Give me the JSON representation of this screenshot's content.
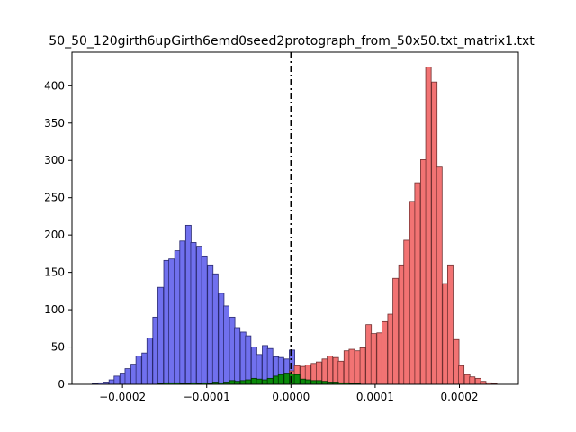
{
  "chart_data": {
    "type": "bar",
    "title": "50_50_120girth6upGirth6emd0seed2protograph_from_50x50.txt_matrix1.txt",
    "xlabel": "",
    "ylabel": "",
    "xlim": [
      -0.00026,
      0.00027
    ],
    "ylim": [
      0,
      445
    ],
    "x_ticks": [
      -0.0002,
      -0.0001,
      0.0,
      0.0001,
      0.0002
    ],
    "x_tick_labels": [
      "−0.0002",
      "−0.0001",
      "0.0000",
      "0.0001",
      "0.0002"
    ],
    "y_ticks": [
      0,
      50,
      100,
      150,
      200,
      250,
      300,
      350,
      400
    ],
    "y_tick_labels": [
      "0",
      "50",
      "100",
      "150",
      "200",
      "250",
      "300",
      "350",
      "400"
    ],
    "bin_width": 6.5e-06,
    "vertical_line": {
      "x": 0.0,
      "style": "dash-dot",
      "color": "#000000"
    },
    "series": [
      {
        "color": "#7070ee",
        "edge": "#2a2a70",
        "bins": [
          [
            -0.000236,
            1
          ],
          [
            -0.000229,
            2
          ],
          [
            -0.000223,
            3
          ],
          [
            -0.000216,
            6
          ],
          [
            -0.00021,
            11
          ],
          [
            -0.000203,
            15
          ],
          [
            -0.000197,
            21
          ],
          [
            -0.00019,
            27
          ],
          [
            -0.000184,
            38
          ],
          [
            -0.000177,
            42
          ],
          [
            -0.000171,
            62
          ],
          [
            -0.000164,
            90
          ],
          [
            -0.000158,
            130
          ],
          [
            -0.000151,
            166
          ],
          [
            -0.000145,
            168
          ],
          [
            -0.000138,
            179
          ],
          [
            -0.000132,
            192
          ],
          [
            -0.000125,
            213
          ],
          [
            -0.000119,
            190
          ],
          [
            -0.000112,
            185
          ],
          [
            -0.000106,
            172
          ],
          [
            -9.9e-05,
            160
          ],
          [
            -9.3e-05,
            148
          ],
          [
            -8.6e-05,
            122
          ],
          [
            -8e-05,
            105
          ],
          [
            -7.3e-05,
            90
          ],
          [
            -6.7e-05,
            76
          ],
          [
            -6e-05,
            70
          ],
          [
            -5.4e-05,
            65
          ],
          [
            -4.7e-05,
            50
          ],
          [
            -4.1e-05,
            40
          ],
          [
            -3.4e-05,
            52
          ],
          [
            -2.8e-05,
            48
          ],
          [
            -2.1e-05,
            37
          ],
          [
            -1.5e-05,
            36
          ],
          [
            -8e-06,
            34
          ],
          [
            -2e-06,
            46
          ]
        ]
      },
      {
        "color": "#f27373",
        "edge": "#703030",
        "bins": [
          [
            -2e-06,
            18
          ],
          [
            4e-06,
            25
          ],
          [
            1.1e-05,
            24
          ],
          [
            1.7e-05,
            26
          ],
          [
            2.4e-05,
            28
          ],
          [
            3e-05,
            30
          ],
          [
            3.7e-05,
            34
          ],
          [
            4.3e-05,
            38
          ],
          [
            5e-05,
            36
          ],
          [
            5.6e-05,
            31
          ],
          [
            6.3e-05,
            45
          ],
          [
            6.9e-05,
            47
          ],
          [
            7.6e-05,
            45
          ],
          [
            8.2e-05,
            49
          ],
          [
            8.9e-05,
            80
          ],
          [
            9.5e-05,
            68
          ],
          [
            0.000102,
            69
          ],
          [
            0.000108,
            84
          ],
          [
            0.000115,
            94
          ],
          [
            0.000121,
            142
          ],
          [
            0.000128,
            160
          ],
          [
            0.000134,
            193
          ],
          [
            0.000141,
            245
          ],
          [
            0.000147,
            270
          ],
          [
            0.000154,
            301
          ],
          [
            0.00016,
            425
          ],
          [
            0.000167,
            405
          ],
          [
            0.000173,
            291
          ],
          [
            0.00018,
            135
          ],
          [
            0.000186,
            160
          ],
          [
            0.000193,
            60
          ],
          [
            0.000199,
            25
          ],
          [
            0.000206,
            13
          ],
          [
            0.000212,
            10
          ],
          [
            0.000219,
            8
          ],
          [
            0.000225,
            4
          ],
          [
            0.000232,
            2
          ],
          [
            0.000238,
            1
          ]
        ]
      },
      {
        "color": "#0a8a0a",
        "edge": "#003300",
        "bins": [
          [
            -0.000158,
            1
          ],
          [
            -0.000151,
            2
          ],
          [
            -0.000145,
            2
          ],
          [
            -0.000138,
            2
          ],
          [
            -0.000132,
            1
          ],
          [
            -0.000125,
            1
          ],
          [
            -0.000119,
            2
          ],
          [
            -0.000112,
            1
          ],
          [
            -0.000106,
            2
          ],
          [
            -9.9e-05,
            1
          ],
          [
            -9.3e-05,
            3
          ],
          [
            -8.6e-05,
            2
          ],
          [
            -8e-05,
            3
          ],
          [
            -7.3e-05,
            5
          ],
          [
            -6.7e-05,
            4
          ],
          [
            -6e-05,
            5
          ],
          [
            -5.4e-05,
            6
          ],
          [
            -4.7e-05,
            8
          ],
          [
            -4.1e-05,
            7
          ],
          [
            -3.4e-05,
            6
          ],
          [
            -2.8e-05,
            8
          ],
          [
            -2.1e-05,
            11
          ],
          [
            -1.5e-05,
            13
          ],
          [
            -8e-06,
            15
          ],
          [
            -2e-06,
            14
          ],
          [
            4e-06,
            13
          ],
          [
            1.1e-05,
            7
          ],
          [
            1.7e-05,
            6
          ],
          [
            2.4e-05,
            5
          ],
          [
            3e-05,
            5
          ],
          [
            3.7e-05,
            4
          ],
          [
            4.3e-05,
            3
          ],
          [
            5e-05,
            3
          ],
          [
            5.6e-05,
            2
          ],
          [
            6.3e-05,
            2
          ],
          [
            6.9e-05,
            1
          ],
          [
            7.6e-05,
            1
          ]
        ]
      }
    ]
  }
}
